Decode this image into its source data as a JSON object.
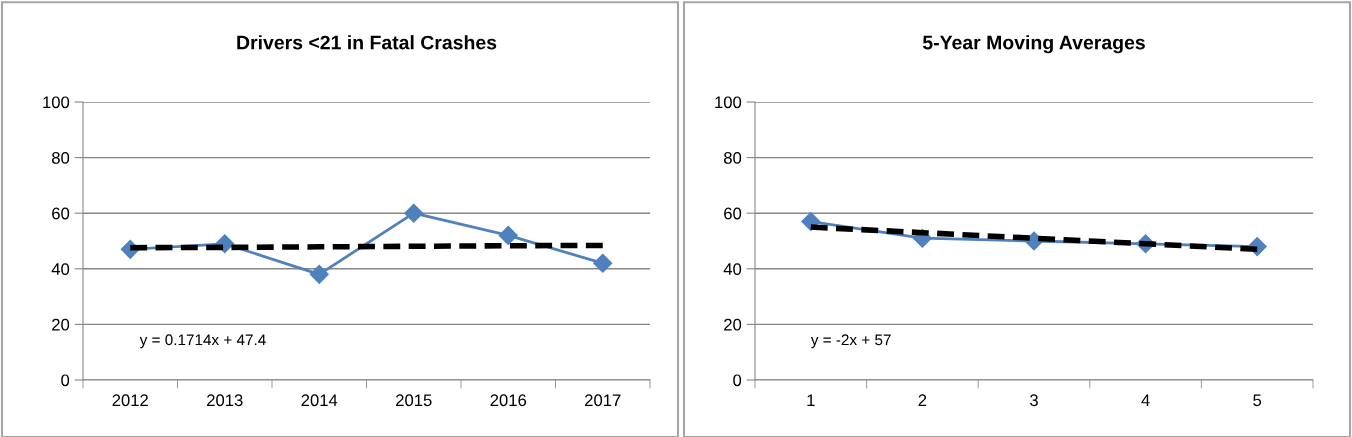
{
  "chart_data": [
    {
      "type": "line",
      "title": "Drivers <21 in Fatal Crashes",
      "categories": [
        "2012",
        "2013",
        "2014",
        "2015",
        "2016",
        "2017"
      ],
      "series": [
        {
          "color": "#4f81bd",
          "values": [
            47,
            49,
            38,
            60,
            52,
            42
          ],
          "marker": "diamond",
          "line_style": "solid"
        },
        {
          "color": "#000000",
          "values": [
            47.6,
            47.7,
            47.9,
            48.1,
            48.3,
            48.4
          ],
          "marker": "none",
          "line_style": "dashed"
        }
      ],
      "ylim": [
        0,
        100
      ],
      "yticks": [
        0,
        20,
        40,
        60,
        80,
        100
      ],
      "grid": "y",
      "legend": false,
      "annotations": [
        "y = 0.1714x + 47.4"
      ]
    },
    {
      "type": "line",
      "title": "5-Year Moving Averages",
      "categories": [
        "1",
        "2",
        "3",
        "4",
        "5"
      ],
      "series": [
        {
          "color": "#4f81bd",
          "values": [
            57,
            51,
            50,
            49,
            48
          ],
          "marker": "diamond",
          "line_style": "solid"
        },
        {
          "color": "#000000",
          "values": [
            55,
            53,
            51,
            49,
            47
          ],
          "marker": "none",
          "line_style": "dashed"
        }
      ],
      "ylim": [
        0,
        100
      ],
      "yticks": [
        0,
        20,
        40,
        60,
        80,
        100
      ],
      "grid": "y",
      "legend": false,
      "annotations": [
        "y = -2x + 57"
      ]
    }
  ]
}
